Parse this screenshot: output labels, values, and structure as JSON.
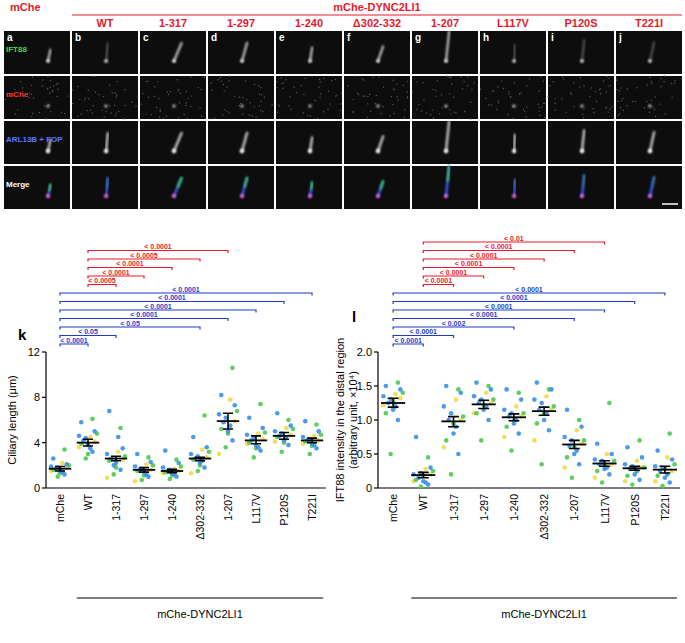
{
  "micrographs": {
    "group_label": "mChe-DYNC2LI1",
    "columns": [
      {
        "letter": "a",
        "label": "mChe"
      },
      {
        "letter": "b",
        "label": "WT"
      },
      {
        "letter": "c",
        "label": "1-317"
      },
      {
        "letter": "d",
        "label": "1-297"
      },
      {
        "letter": "e",
        "label": "1-240"
      },
      {
        "letter": "f",
        "label": "Δ302-332"
      },
      {
        "letter": "g",
        "label": "1-207"
      },
      {
        "letter": "h",
        "label": "L117V"
      },
      {
        "letter": "i",
        "label": "P120S"
      },
      {
        "letter": "j",
        "label": "T221I"
      }
    ],
    "rows": [
      {
        "label": "IFT88",
        "color": "#3ddc3d"
      },
      {
        "label": "mChe",
        "color": "#ff3a3a"
      },
      {
        "label": "ARL13B + FOP",
        "color": "#5a78ff"
      },
      {
        "label": "Merge",
        "color": "#ffffff"
      }
    ]
  },
  "chart_data": [
    {
      "type": "dot",
      "panel": "k",
      "y_label": [
        "Ciliary length (μm)"
      ],
      "categories": [
        "mChe",
        "WT",
        "1-317",
        "1-297",
        "1-240",
        "Δ302-332",
        "1-207",
        "L117V",
        "P120S",
        "T221I"
      ],
      "group_label": {
        "text": "mChe-DYNC2LI1",
        "from": 1,
        "to": 9
      },
      "ylim": [
        0,
        12
      ],
      "yticks": [
        0,
        4,
        8,
        12
      ],
      "grid": false,
      "series": [
        {
          "color": "#f2d94a",
          "values": [
            [
              1.5,
              1.8,
              2.2
            ],
            [
              3.6,
              4.1,
              4.5
            ],
            [
              0.9,
              2.5,
              3.2
            ],
            [
              0.6,
              1.6,
              2.1
            ],
            [
              1.3,
              1.5,
              1.7
            ],
            [
              1.3,
              2.7,
              3.4
            ],
            [
              3.0,
              5.9,
              7.8
            ],
            [
              3.9,
              4.3,
              4.8
            ],
            [
              4.1,
              4.7,
              5.3
            ],
            [
              3.9,
              4.2,
              4.6
            ]
          ]
        },
        {
          "color": "#4cc94c",
          "values": [
            [
              1.0,
              1.6,
              2.0,
              3.4,
              1.3
            ],
            [
              2.6,
              3.9,
              4.8,
              6.1,
              3.0
            ],
            [
              1.2,
              2.4,
              2.8,
              5.3,
              1.8
            ],
            [
              0.7,
              1.5,
              2.0,
              2.7,
              1.1
            ],
            [
              0.8,
              1.4,
              1.9,
              2.5,
              1.1
            ],
            [
              1.5,
              2.5,
              3.2,
              6.4,
              2.0
            ],
            [
              3.6,
              5.2,
              6.8,
              10.6,
              4.8
            ],
            [
              2.7,
              4.0,
              4.9,
              7.4,
              3.5
            ],
            [
              3.2,
              4.5,
              5.2,
              6.0,
              4.0
            ],
            [
              3.0,
              4.1,
              4.7,
              5.6,
              3.7
            ]
          ]
        },
        {
          "color": "#3b8fe8",
          "values": [
            [
              1.2,
              1.5,
              1.7,
              1.9,
              2.1,
              1.4,
              1.8,
              2.6
            ],
            [
              3.2,
              3.8,
              4.2,
              4.6,
              5.0,
              3.5,
              4.4,
              5.8
            ],
            [
              1.6,
              2.2,
              2.6,
              3.0,
              3.5,
              4.5,
              2.0,
              6.8
            ],
            [
              1.0,
              1.4,
              1.6,
              1.9,
              2.3,
              1.2,
              1.7,
              3.0
            ],
            [
              1.0,
              1.3,
              1.5,
              1.8,
              2.2,
              1.2,
              1.6,
              3.3
            ],
            [
              1.8,
              2.2,
              2.6,
              3.0,
              3.6,
              2.4,
              2.8,
              4.5
            ],
            [
              4.2,
              5.0,
              5.8,
              6.5,
              7.3,
              5.5,
              6.2,
              8.2
            ],
            [
              3.3,
              3.8,
              4.2,
              4.7,
              5.3,
              3.6,
              4.4,
              6.2
            ],
            [
              3.8,
              4.2,
              4.6,
              5.0,
              5.5,
              4.4,
              4.8,
              6.6
            ],
            [
              3.5,
              3.9,
              4.2,
              4.5,
              5.0,
              3.8,
              4.3,
              5.9
            ]
          ]
        }
      ],
      "mean": [
        1.7,
        4.0,
        2.6,
        1.6,
        1.5,
        2.6,
        5.9,
        4.2,
        4.6,
        4.2
      ],
      "ci_low": [
        1.5,
        3.7,
        2.4,
        1.4,
        1.35,
        2.4,
        5.2,
        3.9,
        4.3,
        4.0
      ],
      "ci_high": [
        1.9,
        4.3,
        2.8,
        1.8,
        1.65,
        2.7,
        6.6,
        4.6,
        4.9,
        4.4
      ],
      "significance": [
        {
          "from": 0,
          "to": 1,
          "label": "< 0.0001",
          "color": "#1f3cc8"
        },
        {
          "from": 0,
          "to": 2,
          "label": "< 0.05",
          "color": "#1f3cc8"
        },
        {
          "from": 0,
          "to": 5,
          "label": "< 0.05",
          "color": "#1f3cc8"
        },
        {
          "from": 0,
          "to": 6,
          "label": "< 0.0001",
          "color": "#1f3cc8"
        },
        {
          "from": 0,
          "to": 7,
          "label": "< 0.0001",
          "color": "#1f3cc8"
        },
        {
          "from": 0,
          "to": 8,
          "label": "< 0.0001",
          "color": "#1f3cc8"
        },
        {
          "from": 0,
          "to": 9,
          "label": "< 0.0001",
          "color": "#1f3cc8"
        },
        {
          "from": 1,
          "to": 2,
          "label": "< 0.0005",
          "color": "#e8192c"
        },
        {
          "from": 1,
          "to": 3,
          "label": "< 0.0001",
          "color": "#e8192c"
        },
        {
          "from": 1,
          "to": 4,
          "label": "< 0.0001",
          "color": "#e8192c"
        },
        {
          "from": 1,
          "to": 5,
          "label": "< 0.0005",
          "color": "#e8192c"
        },
        {
          "from": 1,
          "to": 6,
          "label": "< 0.0001",
          "color": "#e8192c"
        }
      ]
    },
    {
      "type": "dot",
      "panel": "l",
      "y_label": [
        "IFT88 intensity in the distal region",
        "(arbitrary unit, ×10⁴)"
      ],
      "categories": [
        "mChe",
        "WT",
        "1-317",
        "1-297",
        "1-240",
        "Δ302-332",
        "1-207",
        "L117V",
        "P120S",
        "T221I"
      ],
      "group_label": {
        "text": "mChe-DYNC2LI1",
        "from": 1,
        "to": 9
      },
      "ylim": [
        0,
        2
      ],
      "yticks": [
        0,
        0.5,
        {
          "value": 1,
          "label": "1.0"
        },
        1.5,
        {
          "value": 2,
          "label": "2.0"
        }
      ],
      "grid": false,
      "series": [
        {
          "color": "#f2d94a",
          "values": [
            [
              1.22,
              1.32,
              1.38
            ],
            [
              0.1,
              0.2,
              0.28
            ],
            [
              0.6,
              1.0,
              1.3
            ],
            [
              1.1,
              1.25,
              1.4
            ],
            [
              0.75,
              1.05,
              1.2
            ],
            [
              0.7,
              1.15,
              1.35
            ],
            [
              0.3,
              0.65,
              0.85
            ],
            [
              0.15,
              0.35,
              0.5
            ],
            [
              0.1,
              0.3,
              0.4
            ],
            [
              0.1,
              0.25,
              0.45
            ]
          ]
        },
        {
          "color": "#4cc94c",
          "values": [
            [
              0.5,
              1.1,
              1.4,
              1.55,
              1.28
            ],
            [
              0.02,
              0.12,
              0.25,
              0.45,
              0.18
            ],
            [
              0.2,
              0.7,
              1.05,
              1.45,
              0.95
            ],
            [
              0.7,
              1.1,
              1.3,
              1.5,
              1.22
            ],
            [
              0.55,
              0.9,
              1.1,
              1.4,
              1.0
            ],
            [
              0.35,
              0.95,
              1.2,
              1.45,
              1.1
            ],
            [
              0.15,
              0.45,
              0.7,
              1.0,
              0.6
            ],
            [
              0.08,
              0.25,
              0.4,
              1.25,
              0.35
            ],
            [
              0.05,
              0.18,
              0.3,
              0.7,
              0.28
            ],
            [
              0.03,
              0.18,
              0.35,
              0.8,
              0.28
            ]
          ]
        },
        {
          "color": "#3b8fe8",
          "values": [
            [
              1.0,
              1.15,
              1.25,
              1.35,
              1.45,
              1.2,
              1.3,
              1.5
            ],
            [
              0.05,
              0.1,
              0.15,
              0.2,
              0.3,
              0.08,
              0.22,
              0.75
            ],
            [
              0.5,
              0.8,
              1.0,
              1.2,
              1.4,
              0.9,
              1.1,
              1.5
            ],
            [
              1.0,
              1.15,
              1.25,
              1.35,
              1.45,
              1.2,
              1.3,
              1.55
            ],
            [
              0.8,
              0.95,
              1.05,
              1.15,
              1.3,
              1.0,
              1.1,
              1.45
            ],
            [
              0.85,
              1.0,
              1.15,
              1.3,
              1.45,
              1.1,
              1.25,
              1.55
            ],
            [
              0.35,
              0.5,
              0.62,
              0.75,
              0.9,
              0.55,
              0.7,
              1.15
            ],
            [
              0.2,
              0.28,
              0.35,
              0.42,
              0.5,
              0.3,
              0.4,
              0.65
            ],
            [
              0.12,
              0.2,
              0.28,
              0.35,
              0.45,
              0.25,
              0.32,
              0.6
            ],
            [
              0.08,
              0.15,
              0.25,
              0.32,
              0.42,
              0.2,
              0.3,
              0.55
            ]
          ]
        }
      ],
      "mean": [
        1.25,
        0.19,
        0.98,
        1.23,
        1.04,
        1.13,
        0.64,
        0.36,
        0.29,
        0.27
      ],
      "ci_low": [
        1.19,
        0.15,
        0.9,
        1.17,
        0.99,
        1.07,
        0.58,
        0.32,
        0.26,
        0.22
      ],
      "ci_high": [
        1.32,
        0.23,
        1.05,
        1.29,
        1.09,
        1.19,
        0.7,
        0.4,
        0.32,
        0.32
      ],
      "significance": [
        {
          "from": 0,
          "to": 1,
          "label": "< 0.0001",
          "color": "#1f3cc8"
        },
        {
          "from": 0,
          "to": 2,
          "label": "< 0.0001",
          "color": "#1f3cc8"
        },
        {
          "from": 0,
          "to": 4,
          "label": "< 0.002",
          "color": "#1f3cc8"
        },
        {
          "from": 0,
          "to": 6,
          "label": "< 0.0001",
          "color": "#1f3cc8"
        },
        {
          "from": 0,
          "to": 7,
          "label": "< 0.0001",
          "color": "#1f3cc8"
        },
        {
          "from": 0,
          "to": 8,
          "label": "< 0.0001",
          "color": "#1f3cc8"
        },
        {
          "from": 0,
          "to": 9,
          "label": "< 0.0001",
          "color": "#1f3cc8"
        },
        {
          "from": 1,
          "to": 2,
          "label": "< 0.0001",
          "color": "#e8192c"
        },
        {
          "from": 1,
          "to": 3,
          "label": "< 0.0001",
          "color": "#e8192c"
        },
        {
          "from": 1,
          "to": 4,
          "label": "< 0.0001",
          "color": "#e8192c"
        },
        {
          "from": 1,
          "to": 5,
          "label": "< 0.0001",
          "color": "#e8192c"
        },
        {
          "from": 1,
          "to": 6,
          "label": "< 0.0001",
          "color": "#e8192c"
        },
        {
          "from": 1,
          "to": 7,
          "label": "< 0.01",
          "color": "#e8192c"
        }
      ]
    }
  ]
}
